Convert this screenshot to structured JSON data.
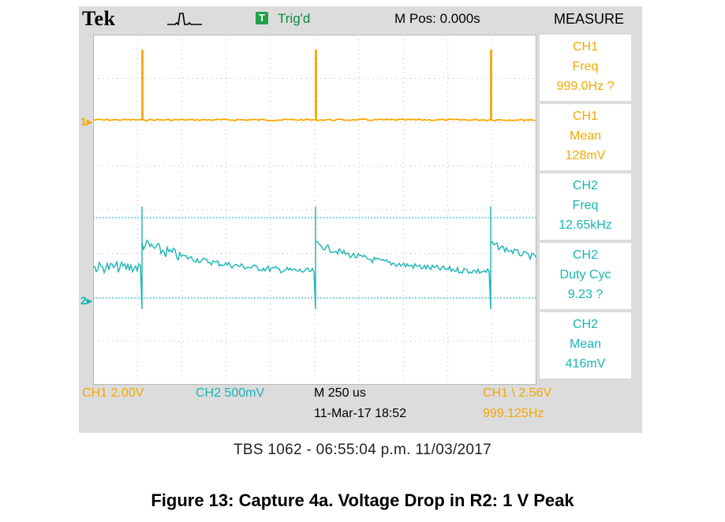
{
  "header": {
    "brand": "Tek",
    "acq_icon": "acquisition-waveform-icon",
    "trig_badge": "T",
    "trig_status": "Trig'd",
    "mpos": "M Pos: 0.000s",
    "measure_title": "MEASURE"
  },
  "channel_refs": {
    "ch1": "1",
    "ch2": "2"
  },
  "measurements": [
    {
      "channel": "CH1",
      "type": "Freq",
      "value": "999.0Hz ?"
    },
    {
      "channel": "CH1",
      "type": "Mean",
      "value": "128mV"
    },
    {
      "channel": "CH2",
      "type": "Freq",
      "value": "12.65kHz"
    },
    {
      "channel": "CH2",
      "type": "Duty Cyc",
      "value": "9.23 ?"
    },
    {
      "channel": "CH2",
      "type": "Mean",
      "value": "416mV"
    }
  ],
  "footer": {
    "ch1_scale": "CH1  2.00V",
    "ch2_scale": "CH2  500mV",
    "timebase": "M 250 us",
    "datetime": "11-Mar-17 18:52",
    "trig_setting": "CH1 \\ 2.56V",
    "trig_freq": "999.125Hz"
  },
  "caption_line": "TBS 1062 - 06:55:04 p.m.   11/03/2017",
  "figure_caption": "Figure 13: Capture 4a. Voltage Drop in R2: 1 V Peak",
  "colors": {
    "ch1": "#f5a800",
    "ch2": "#19b4b4",
    "trig_green": "#1fa04a",
    "frame": "#dcdcdc",
    "grid": "#b9b9b9"
  }
}
